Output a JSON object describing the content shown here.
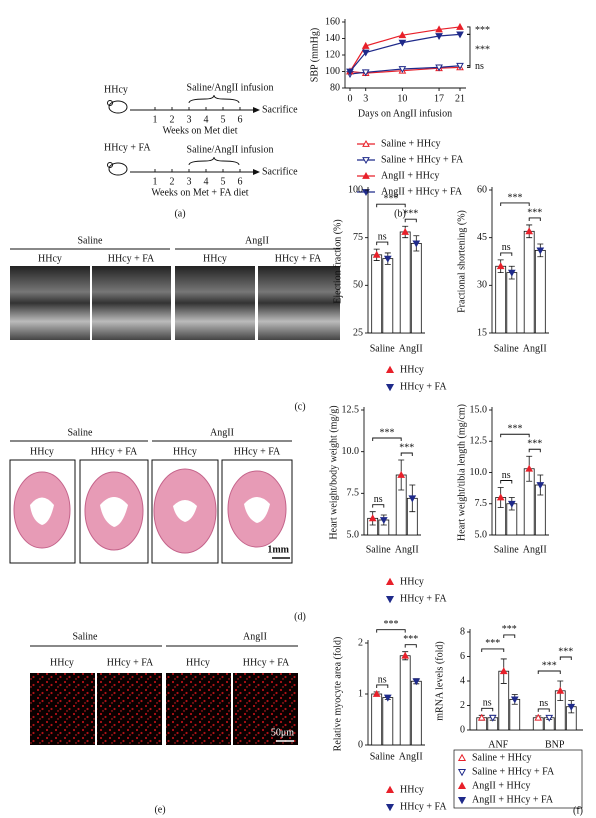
{
  "figure": {
    "panel_labels": [
      "(a)",
      "(b)",
      "(c)",
      "(d)",
      "(e)",
      "(f)"
    ]
  },
  "schematic": {
    "rows": [
      {
        "group": "HHcy",
        "infusion": "Saline/AngII infusion",
        "end": "Sacrifice",
        "weeks": [
          1,
          2,
          3,
          4,
          5,
          6
        ],
        "caption": "Weeks on Met diet"
      },
      {
        "group": "HHcy + FA",
        "infusion": "Saline/AngII infusion",
        "end": "Sacrifice",
        "weeks": [
          1,
          2,
          3,
          4,
          5,
          6
        ],
        "caption": "Weeks on Met + FA diet"
      }
    ]
  },
  "images": {
    "echo": {
      "groups": [
        "Saline",
        "AngII"
      ],
      "columns": [
        "HHcy",
        "HHcy + FA",
        "HHcy",
        "HHcy + FA"
      ]
    },
    "histology": {
      "groups": [
        "Saline",
        "AngII"
      ],
      "columns": [
        "HHcy",
        "HHcy + FA",
        "HHcy",
        "HHcy + FA"
      ],
      "scale": "1mm"
    },
    "fluorescence": {
      "groups": [
        "Saline",
        "AngII"
      ],
      "columns": [
        "HHcy",
        "HHcy + FA",
        "HHcy",
        "HHcy + FA"
      ],
      "scale": "50μm"
    }
  },
  "chart_data": [
    {
      "type": "line",
      "xlabel": "Days on AngII infusion",
      "ylabel": "SBP (mmHg)",
      "x": [
        0,
        3,
        10,
        17,
        21
      ],
      "xlim": [
        0,
        21
      ],
      "xticks": [
        0,
        3,
        10,
        17,
        21
      ],
      "ylim": [
        80,
        160
      ],
      "yticks": [
        80,
        100,
        120,
        140,
        160
      ],
      "series": [
        {
          "name": "Saline + HHcy",
          "color": "#e8202a",
          "marker": "triangle-up",
          "filled": false,
          "values": [
            100,
            98,
            101,
            104,
            105
          ]
        },
        {
          "name": "Saline + HHcy + FA",
          "color": "#1f2a8a",
          "marker": "triangle-down",
          "filled": false,
          "values": [
            97,
            99,
            103,
            105,
            107
          ]
        },
        {
          "name": "AngII + HHcy",
          "color": "#e8202a",
          "marker": "triangle-up",
          "filled": true,
          "values": [
            100,
            131,
            144,
            151,
            154
          ]
        },
        {
          "name": "AngII + HHcy + FA",
          "color": "#1f2a8a",
          "marker": "triangle-down",
          "filled": true,
          "values": [
            100,
            123,
            135,
            143,
            145
          ]
        }
      ],
      "annotations": [
        "***",
        "***",
        "ns"
      ]
    },
    {
      "type": "bar",
      "ylabel": "Ejection fraction (%)",
      "categories": [
        "Saline",
        "AngII"
      ],
      "ylim": [
        25,
        100
      ],
      "yticks": [
        25,
        50,
        75,
        100
      ],
      "legend": true,
      "series": [
        {
          "name": "HHcy",
          "color": "#e8202a",
          "marker": "triangle-up",
          "filled": true,
          "values": [
            66,
            78
          ],
          "errors": [
            3,
            3
          ]
        },
        {
          "name": "HHcy + FA",
          "color": "#1f2a8a",
          "marker": "triangle-down",
          "filled": true,
          "values": [
            64,
            72
          ],
          "errors": [
            3,
            4
          ]
        }
      ],
      "annotations": [
        "ns",
        "***",
        "***"
      ]
    },
    {
      "type": "bar",
      "ylabel": "Fractional shortening (%)",
      "categories": [
        "Saline",
        "AngII"
      ],
      "ylim": [
        15,
        60
      ],
      "yticks": [
        15,
        30,
        45,
        60
      ],
      "series": [
        {
          "name": "HHcy",
          "color": "#e8202a",
          "marker": "triangle-up",
          "filled": true,
          "values": [
            36,
            47
          ],
          "errors": [
            2,
            2
          ]
        },
        {
          "name": "HHcy + FA",
          "color": "#1f2a8a",
          "marker": "triangle-down",
          "filled": true,
          "values": [
            34,
            41
          ],
          "errors": [
            2,
            2
          ]
        }
      ],
      "annotations": [
        "ns",
        "***",
        "***"
      ]
    },
    {
      "type": "bar",
      "ylabel": "Heart weight/body weight (mg/g)",
      "categories": [
        "Saline",
        "AngII"
      ],
      "ylim": [
        5,
        12.5
      ],
      "yticks": [
        {
          "value": 5,
          "label": "5.0"
        },
        7.5,
        {
          "value": 10,
          "label": "10.0"
        },
        12.5
      ],
      "legend": true,
      "series": [
        {
          "name": "HHcy",
          "color": "#e8202a",
          "marker": "triangle-up",
          "filled": true,
          "values": [
            6,
            8.6
          ],
          "errors": [
            0.4,
            0.9
          ]
        },
        {
          "name": "HHcy + FA",
          "color": "#1f2a8a",
          "marker": "triangle-down",
          "filled": true,
          "values": [
            5.9,
            7.2
          ],
          "errors": [
            0.3,
            0.8
          ]
        }
      ],
      "annotations": [
        "ns",
        "***",
        "***"
      ]
    },
    {
      "type": "bar",
      "ylabel": "Heart weight/tibia length (mg/cm)",
      "categories": [
        "Saline",
        "AngII"
      ],
      "ylim": [
        5,
        15
      ],
      "yticks": [
        {
          "value": 5,
          "label": "5.0"
        },
        7.5,
        {
          "value": 10,
          "label": "10.0"
        },
        12.5,
        {
          "value": 15,
          "label": "15.0"
        }
      ],
      "series": [
        {
          "name": "HHcy",
          "color": "#e8202a",
          "marker": "triangle-up",
          "filled": true,
          "values": [
            8,
            10.3
          ],
          "errors": [
            0.8,
            1
          ]
        },
        {
          "name": "HHcy + FA",
          "color": "#1f2a8a",
          "marker": "triangle-down",
          "filled": true,
          "values": [
            7.5,
            9
          ],
          "errors": [
            0.5,
            0.8
          ]
        }
      ],
      "annotations": [
        "ns",
        "***",
        "***"
      ]
    },
    {
      "type": "bar",
      "ylabel": "Relative myocyte area (fold)",
      "categories": [
        "Saline",
        "AngII"
      ],
      "ylim": [
        0,
        2
      ],
      "yticks": [
        0,
        1,
        2
      ],
      "legend": true,
      "series": [
        {
          "name": "HHcy",
          "color": "#e8202a",
          "marker": "triangle-up",
          "filled": true,
          "values": [
            1,
            1.75
          ],
          "errors": [
            0.04,
            0.08
          ]
        },
        {
          "name": "HHcy + FA",
          "color": "#1f2a8a",
          "marker": "triangle-down",
          "filled": true,
          "values": [
            0.93,
            1.25
          ],
          "errors": [
            0.04,
            0.05
          ]
        }
      ],
      "annotations": [
        "ns",
        "***",
        "***"
      ]
    },
    {
      "type": "bar",
      "ylabel": "mRNA levels (fold)",
      "categories": [
        "ANF",
        "BNP"
      ],
      "ylim": [
        0,
        8
      ],
      "yticks": [
        0,
        2,
        4,
        6,
        8
      ],
      "legend": true,
      "series": [
        {
          "name": "Saline + HHcy",
          "color": "#e8202a",
          "marker": "triangle-up",
          "filled": false,
          "values": [
            1,
            1
          ],
          "errors": [
            0.2,
            0.15
          ]
        },
        {
          "name": "Saline + HHcy + FA",
          "color": "#1f2a8a",
          "marker": "triangle-down",
          "filled": false,
          "values": [
            1,
            1
          ],
          "errors": [
            0.2,
            0.15
          ]
        },
        {
          "name": "AngII + HHcy",
          "color": "#e8202a",
          "marker": "triangle-up",
          "filled": true,
          "values": [
            4.8,
            3.2
          ],
          "errors": [
            1,
            0.8
          ]
        },
        {
          "name": "AngII + HHcy + FA",
          "color": "#1f2a8a",
          "marker": "triangle-down",
          "filled": true,
          "values": [
            2.5,
            1.9
          ],
          "errors": [
            0.4,
            0.5
          ]
        }
      ],
      "annotations": [
        "ns",
        "***",
        "***",
        "ns",
        "***",
        "***"
      ]
    }
  ]
}
